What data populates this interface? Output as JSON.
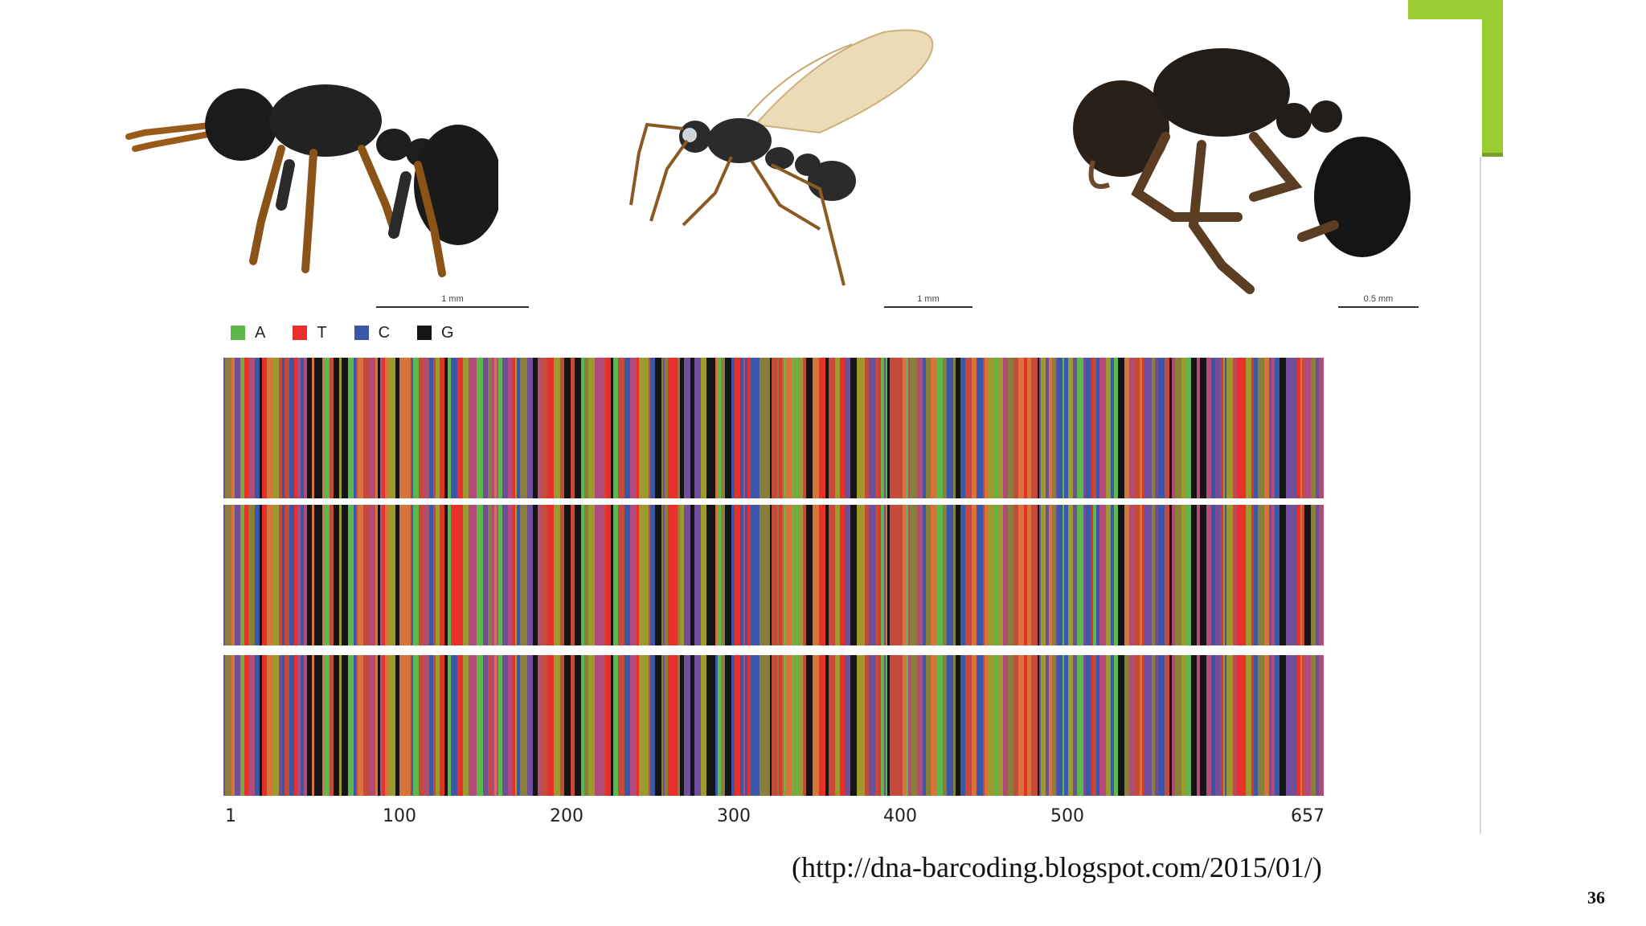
{
  "theme": {
    "accent_color": "#9acd32",
    "rule_color": "#d9d9d9"
  },
  "specimens": [
    {
      "name": "worker ant side view",
      "scale_label": "1 mm"
    },
    {
      "name": "winged male ant side view",
      "scale_label": "1 mm"
    },
    {
      "name": "queen ant side view",
      "scale_label": "0.5 mm"
    }
  ],
  "legend": [
    {
      "label": "A",
      "color": "#5cb84a"
    },
    {
      "label": "T",
      "color": "#e8302a"
    },
    {
      "label": "C",
      "color": "#3c56a8"
    },
    {
      "label": "G",
      "color": "#151515"
    }
  ],
  "barcode": {
    "rows": 3,
    "sequence_length": 657,
    "axis_ticks": [
      "1",
      "100",
      "200",
      "300",
      "400",
      "500",
      "657"
    ]
  },
  "source_url": "(http://dna-barcoding.blogspot.com/2015/01/)",
  "slide_number": "36"
}
